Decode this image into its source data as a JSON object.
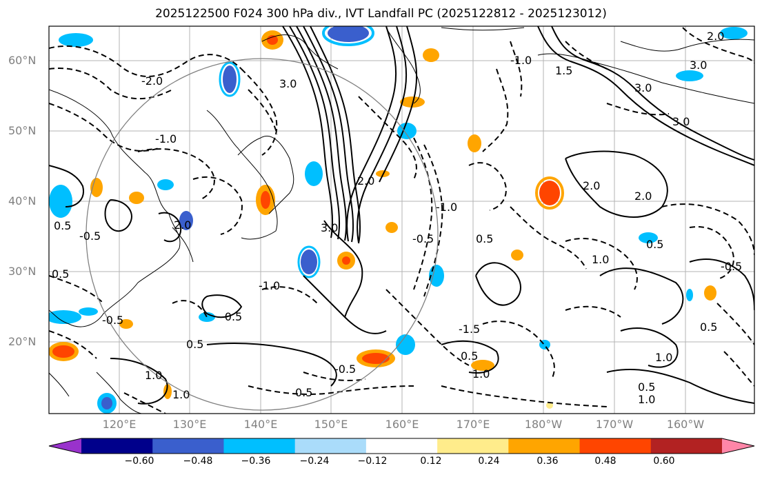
{
  "title": "2025122500 F024 300 hPa div., IVT Landfall PC (2025122812 - 2025123012)",
  "lat_labels": [
    "60°N",
    "50°N",
    "40°N",
    "30°N",
    "20°N"
  ],
  "lon_labels": [
    "120°E",
    "130°E",
    "140°E",
    "150°E",
    "160°E",
    "170°E",
    "180°W",
    "170°W",
    "160°W"
  ],
  "colorbar": {
    "ticks": [
      "−0.60",
      "−0.48",
      "−0.36",
      "−0.24",
      "−0.12",
      "0.12",
      "0.24",
      "0.36",
      "0.48",
      "0.60"
    ],
    "colors": [
      "#9932cc",
      "#00008b",
      "#3a5fcd",
      "#00bfff",
      "#aadcfa",
      "#ffffff",
      "#ffec8b",
      "#ffa500",
      "#ff4500",
      "#b22222",
      "#ff86a8"
    ]
  },
  "contour_labels": [
    "-2.0",
    "-1.5",
    "-1.0",
    "-0.5",
    "0.5",
    "1.0",
    "1.5",
    "2.0",
    "3.0"
  ]
}
